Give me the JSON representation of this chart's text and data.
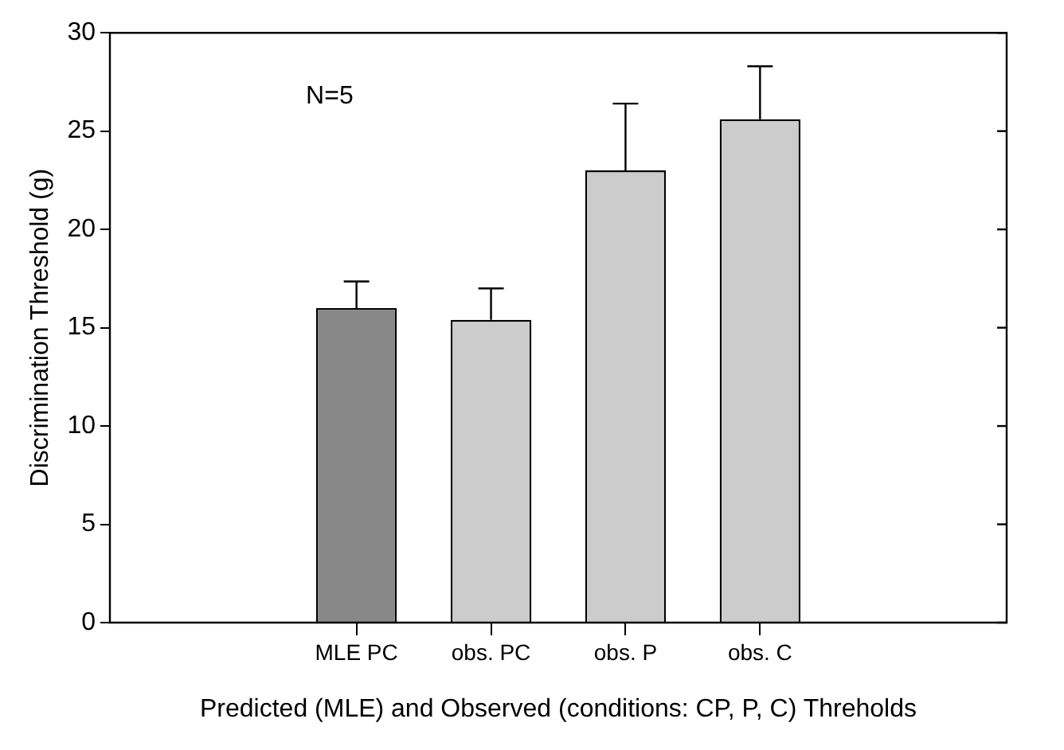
{
  "chart_data": {
    "type": "bar",
    "xlabel": "Predicted (MLE) and Observed (conditions: CP, P, C) Threholds",
    "ylabel": "Discrimination Threshold (g)",
    "categories": [
      "MLE PC",
      "obs. PC",
      "obs. P",
      "obs. C"
    ],
    "values": [
      16.0,
      15.4,
      23.0,
      25.6
    ],
    "colors": [
      "#888888",
      "#cccccc",
      "#cccccc",
      "#cccccc"
    ],
    "errors": [
      [
        16.0,
        17.35
      ],
      [
        15.4,
        17.0
      ],
      [
        23.0,
        26.4
      ],
      [
        25.6,
        28.3
      ]
    ],
    "ylim": [
      0,
      30
    ],
    "yticks": [
      0,
      5,
      10,
      15,
      20,
      25,
      30
    ],
    "grid": false,
    "legend": false,
    "annotations": [
      "N=5"
    ]
  }
}
